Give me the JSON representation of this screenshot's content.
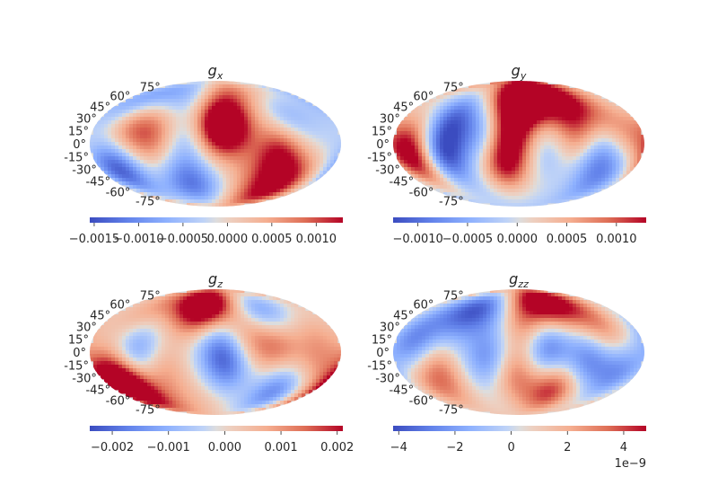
{
  "chart_data": [
    {
      "type": "heatmap",
      "projection": "mollweide",
      "title": "g",
      "title_subscript": "x",
      "lat_labels": [
        "75°",
        "60°",
        "45°",
        "30°",
        "15°",
        "0°",
        "-15°",
        "-30°",
        "-45°",
        "-60°",
        "-75°"
      ],
      "colormap": "coolwarm",
      "colorbar": {
        "vmin": -0.00155,
        "vmax": 0.0013,
        "ticks": [
          -0.0015,
          -0.001,
          -0.0005,
          0,
          0.0005,
          0.001
        ],
        "tick_labels": [
          "−0.0015",
          "−0.0010",
          "−0.0005",
          "0.0000",
          "0.0005",
          "0.0010"
        ]
      },
      "field": [
        {
          "lon": -150,
          "lat": -30,
          "value": -0.00145
        },
        {
          "lon": -130,
          "lat": 20,
          "value": 0.0009
        },
        {
          "lon": -150,
          "lat": 45,
          "value": -0.0008
        },
        {
          "lon": -90,
          "lat": 10,
          "value": 0.0008
        },
        {
          "lon": -70,
          "lat": 70,
          "value": -0.0011
        },
        {
          "lon": -50,
          "lat": -45,
          "value": -0.0009
        },
        {
          "lon": -40,
          "lat": 5,
          "value": -0.0005
        },
        {
          "lon": 0,
          "lat": 20,
          "value": 0.0013
        },
        {
          "lon": 25,
          "lat": 20,
          "value": 0.0011
        },
        {
          "lon": 30,
          "lat": 75,
          "value": 0.0011
        },
        {
          "lon": 50,
          "lat": -30,
          "value": 0.0003
        },
        {
          "lon": 90,
          "lat": -10,
          "value": 0.0011
        },
        {
          "lon": 120,
          "lat": -40,
          "value": 0.0009
        },
        {
          "lon": 110,
          "lat": 35,
          "value": -0.0006
        },
        {
          "lon": 150,
          "lat": 10,
          "value": -0.0002
        },
        {
          "lon": -20,
          "lat": -55,
          "value": -0.0004
        },
        {
          "lon": 100,
          "lat": -65,
          "value": 0.0008
        }
      ]
    },
    {
      "type": "heatmap",
      "projection": "mollweide",
      "title": "g",
      "title_subscript": "y",
      "lat_labels": [
        "75°",
        "60°",
        "45°",
        "30°",
        "15°",
        "0°",
        "-15°",
        "-30°",
        "-45°",
        "-60°",
        "-75°"
      ],
      "colormap": "coolwarm",
      "colorbar": {
        "vmin": -0.00125,
        "vmax": 0.0013,
        "ticks": [
          -0.001,
          -0.0005,
          0,
          0.0005,
          0.001
        ],
        "tick_labels": [
          "−0.0010",
          "−0.0005",
          "0.0000",
          "0.0005",
          "0.0010"
        ]
      },
      "field": [
        {
          "lon": -160,
          "lat": 0,
          "value": 0.0009
        },
        {
          "lon": -150,
          "lat": -25,
          "value": 0.0011
        },
        {
          "lon": -110,
          "lat": -15,
          "value": -0.0013
        },
        {
          "lon": -100,
          "lat": 30,
          "value": -0.0009
        },
        {
          "lon": -50,
          "lat": 10,
          "value": -0.0006
        },
        {
          "lon": -20,
          "lat": -25,
          "value": 0.0013
        },
        {
          "lon": -10,
          "lat": 15,
          "value": 0.0012
        },
        {
          "lon": 0,
          "lat": 55,
          "value": 0.0012
        },
        {
          "lon": 30,
          "lat": 60,
          "value": 0.0013
        },
        {
          "lon": 40,
          "lat": -10,
          "value": -0.0004
        },
        {
          "lon": 80,
          "lat": 10,
          "value": 0.0007
        },
        {
          "lon": 100,
          "lat": 45,
          "value": 0.0009
        },
        {
          "lon": 120,
          "lat": -15,
          "value": -0.0008
        },
        {
          "lon": 150,
          "lat": 10,
          "value": 0.0006
        },
        {
          "lon": 150,
          "lat": -45,
          "value": -0.0006
        },
        {
          "lon": -40,
          "lat": -60,
          "value": -0.0002
        }
      ]
    },
    {
      "type": "heatmap",
      "projection": "mollweide",
      "title": "g",
      "title_subscript": "z",
      "lat_labels": [
        "75°",
        "60°",
        "45°",
        "30°",
        "15°",
        "0°",
        "-15°",
        "-30°",
        "-45°",
        "-60°",
        "-75°"
      ],
      "colormap": "coolwarm",
      "colorbar": {
        "vmin": -0.0024,
        "vmax": 0.0021,
        "ticks": [
          -0.002,
          -0.001,
          0,
          0.001,
          0.002
        ],
        "tick_labels": [
          "−0.002",
          "−0.001",
          "0.000",
          "0.001",
          "0.002"
        ]
      },
      "field": [
        {
          "lon": -160,
          "lat": -30,
          "value": 0.0018
        },
        {
          "lon": -140,
          "lat": -45,
          "value": 0.0021
        },
        {
          "lon": -110,
          "lat": 5,
          "value": -0.0016
        },
        {
          "lon": -120,
          "lat": 40,
          "value": 0.0008
        },
        {
          "lon": -80,
          "lat": -20,
          "value": 0.0009
        },
        {
          "lon": -30,
          "lat": 50,
          "value": 0.0016
        },
        {
          "lon": -10,
          "lat": 65,
          "value": 0.0021
        },
        {
          "lon": 0,
          "lat": 10,
          "value": -0.0012
        },
        {
          "lon": 20,
          "lat": -15,
          "value": -0.0016
        },
        {
          "lon": 50,
          "lat": 15,
          "value": 0.0011
        },
        {
          "lon": 90,
          "lat": 5,
          "value": 0.0012
        },
        {
          "lon": 80,
          "lat": 55,
          "value": -0.0017
        },
        {
          "lon": 110,
          "lat": -45,
          "value": -0.0019
        },
        {
          "lon": 150,
          "lat": 20,
          "value": 0.0006
        },
        {
          "lon": 140,
          "lat": -20,
          "value": 0.0009
        },
        {
          "lon": -40,
          "lat": -65,
          "value": 0.0004
        }
      ]
    },
    {
      "type": "heatmap",
      "projection": "mollweide",
      "title": "g",
      "title_subscript": "zz",
      "lat_labels": [
        "75°",
        "60°",
        "45°",
        "30°",
        "15°",
        "0°",
        "-15°",
        "-30°",
        "-45°",
        "-60°",
        "-75°"
      ],
      "colormap": "coolwarm",
      "colorbar": {
        "vmin": -4.2e-09,
        "vmax": 4.8e-09,
        "ticks": [
          -4e-09,
          -2e-09,
          0,
          2e-09,
          4e-09
        ],
        "tick_labels": [
          "−4",
          "−2",
          "0",
          "2",
          "4"
        ],
        "offset_label": "1e−9"
      },
      "field": [
        {
          "lon": -150,
          "lat": 10,
          "value": -3e-09
        },
        {
          "lon": -120,
          "lat": -20,
          "value": 3e-09
        },
        {
          "lon": -100,
          "lat": 40,
          "value": -2e-09
        },
        {
          "lon": -60,
          "lat": 60,
          "value": -3.5e-09
        },
        {
          "lon": -40,
          "lat": -10,
          "value": -3e-09
        },
        {
          "lon": -10,
          "lat": -25,
          "value": 3.5e-09
        },
        {
          "lon": 10,
          "lat": 30,
          "value": 2.5e-09
        },
        {
          "lon": 40,
          "lat": 5,
          "value": -3.5e-09
        },
        {
          "lon": 60,
          "lat": -45,
          "value": 4.5e-09
        },
        {
          "lon": 80,
          "lat": 55,
          "value": 3e-09
        },
        {
          "lon": 100,
          "lat": -10,
          "value": -3e-09
        },
        {
          "lon": 130,
          "lat": 25,
          "value": 2.5e-09
        },
        {
          "lon": 150,
          "lat": -25,
          "value": -2.5e-09
        },
        {
          "lon": 30,
          "lat": 70,
          "value": 4.5e-09
        },
        {
          "lon": -150,
          "lat": -45,
          "value": 2e-09
        }
      ]
    }
  ]
}
